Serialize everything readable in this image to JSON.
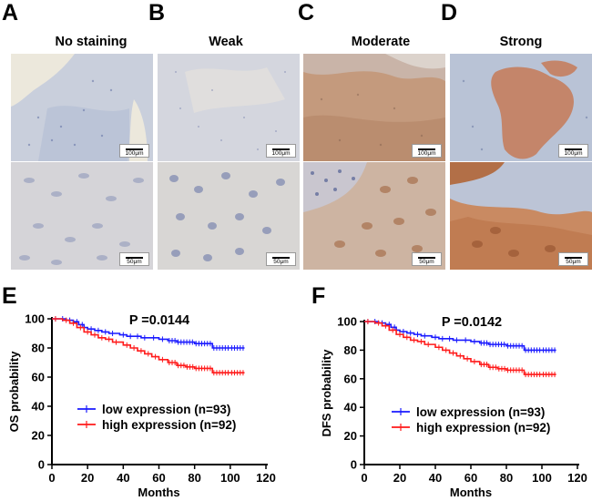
{
  "panels": [
    {
      "label": "A",
      "title": "No staining",
      "scale_top": "100μm",
      "scale_bottom": "50μm"
    },
    {
      "label": "B",
      "title": "Weak",
      "scale_top": "100μm",
      "scale_bottom": "50μm"
    },
    {
      "label": "C",
      "title": "Moderate",
      "scale_top": "100μm",
      "scale_bottom": "50μm"
    },
    {
      "label": "D",
      "title": "Strong",
      "scale_top": "100μm",
      "scale_bottom": "50μm"
    }
  ],
  "colors": {
    "low": "#1a1aff",
    "high": "#ff1a1a"
  },
  "chart_data": [
    {
      "panel": "E",
      "type": "line",
      "title": "P =0.0144",
      "xlabel": "Months",
      "ylabel": "OS probability",
      "xlim": [
        0,
        120
      ],
      "ylim": [
        0,
        100
      ],
      "xticks": [
        0,
        20,
        40,
        60,
        80,
        100,
        120
      ],
      "yticks": [
        0,
        20,
        40,
        60,
        80,
        100
      ],
      "legend": "bottom-left",
      "series": [
        {
          "name": "low expression (n=93)",
          "key": "low",
          "x": [
            0,
            8,
            12,
            15,
            18,
            20,
            24,
            28,
            32,
            38,
            42,
            46,
            50,
            55,
            60,
            65,
            70,
            80,
            90,
            100,
            108
          ],
          "y": [
            100,
            99,
            98,
            96,
            94,
            93,
            92,
            91,
            90,
            89,
            88,
            88,
            87,
            87,
            86,
            85,
            84,
            83,
            80,
            80,
            80
          ]
        },
        {
          "name": "high expression (n=92)",
          "key": "high",
          "x": [
            0,
            6,
            10,
            14,
            18,
            22,
            26,
            30,
            34,
            40,
            44,
            48,
            52,
            56,
            60,
            65,
            70,
            75,
            80,
            90,
            100,
            108
          ],
          "y": [
            100,
            99,
            97,
            94,
            91,
            89,
            87,
            86,
            84,
            82,
            80,
            78,
            76,
            74,
            72,
            70,
            68,
            67,
            66,
            63,
            63,
            63
          ]
        }
      ]
    },
    {
      "panel": "F",
      "type": "line",
      "title": "P =0.0142",
      "xlabel": "Months",
      "ylabel": "DFS probability",
      "xlim": [
        0,
        120
      ],
      "ylim": [
        0,
        100
      ],
      "xticks": [
        0,
        20,
        40,
        60,
        80,
        100,
        120
      ],
      "yticks": [
        0,
        20,
        40,
        60,
        80,
        100
      ],
      "legend": "bottom-left",
      "series": [
        {
          "name": "low expression (n=93)",
          "key": "low",
          "x": [
            0,
            8,
            12,
            15,
            18,
            20,
            24,
            28,
            32,
            38,
            42,
            46,
            50,
            55,
            60,
            65,
            70,
            80,
            90,
            100,
            108
          ],
          "y": [
            100,
            99,
            98,
            96,
            94,
            93,
            92,
            91,
            90,
            89,
            88,
            88,
            87,
            87,
            86,
            85,
            84,
            83,
            80,
            80,
            80
          ]
        },
        {
          "name": "high expression (n=92)",
          "key": "high",
          "x": [
            0,
            6,
            10,
            14,
            18,
            22,
            26,
            30,
            34,
            40,
            44,
            48,
            52,
            56,
            60,
            65,
            70,
            75,
            80,
            90,
            100,
            108
          ],
          "y": [
            100,
            99,
            97,
            94,
            91,
            89,
            87,
            86,
            84,
            82,
            80,
            78,
            76,
            74,
            72,
            70,
            68,
            67,
            66,
            63,
            63,
            63
          ]
        }
      ]
    }
  ]
}
